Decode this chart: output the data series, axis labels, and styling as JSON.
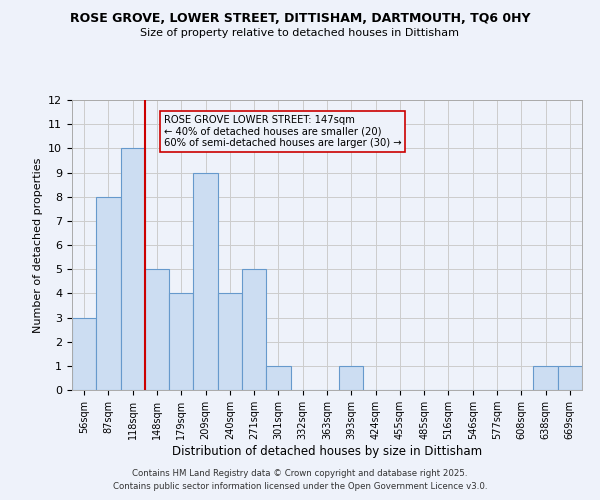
{
  "title": "ROSE GROVE, LOWER STREET, DITTISHAM, DARTMOUTH, TQ6 0HY",
  "subtitle": "Size of property relative to detached houses in Dittisham",
  "xlabel": "Distribution of detached houses by size in Dittisham",
  "ylabel": "Number of detached properties",
  "bar_labels": [
    "56sqm",
    "87sqm",
    "118sqm",
    "148sqm",
    "179sqm",
    "209sqm",
    "240sqm",
    "271sqm",
    "301sqm",
    "332sqm",
    "363sqm",
    "393sqm",
    "424sqm",
    "455sqm",
    "485sqm",
    "516sqm",
    "546sqm",
    "577sqm",
    "608sqm",
    "638sqm",
    "669sqm"
  ],
  "bar_values": [
    3,
    8,
    10,
    5,
    4,
    9,
    4,
    5,
    1,
    0,
    0,
    1,
    0,
    0,
    0,
    0,
    0,
    0,
    0,
    1,
    1
  ],
  "bar_color": "#ccddf2",
  "bar_edgecolor": "#6699cc",
  "grid_color": "#cccccc",
  "background_color": "#eef2fa",
  "vline_color": "#cc0000",
  "ylim": [
    0,
    12
  ],
  "yticks": [
    0,
    1,
    2,
    3,
    4,
    5,
    6,
    7,
    8,
    9,
    10,
    11,
    12
  ],
  "annotation_text": "ROSE GROVE LOWER STREET: 147sqm\n← 40% of detached houses are smaller (20)\n60% of semi-detached houses are larger (30) →",
  "footer1": "Contains HM Land Registry data © Crown copyright and database right 2025.",
  "footer2": "Contains public sector information licensed under the Open Government Licence v3.0."
}
